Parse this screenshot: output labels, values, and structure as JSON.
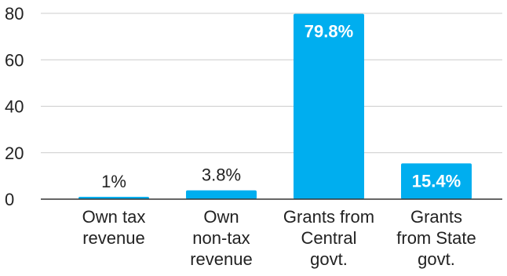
{
  "chart_data": {
    "type": "bar",
    "categories": [
      [
        "Own tax",
        "revenue"
      ],
      [
        "Own",
        "non-tax",
        "revenue"
      ],
      [
        "Grants from",
        "Central",
        "govt."
      ],
      [
        "Grants",
        "from State",
        "govt."
      ]
    ],
    "values": [
      1,
      3.8,
      79.8,
      15.4
    ],
    "data_labels": [
      "1%",
      "3.8%",
      "79.8%",
      "15.4%"
    ],
    "y_ticks": [
      "0",
      "20",
      "40",
      "60",
      "80"
    ],
    "ylim": [
      0,
      80
    ],
    "title": "",
    "xlabel": "",
    "ylabel": "",
    "grid": true,
    "bar_color": "#00aeef",
    "label_inside_threshold": 10
  }
}
